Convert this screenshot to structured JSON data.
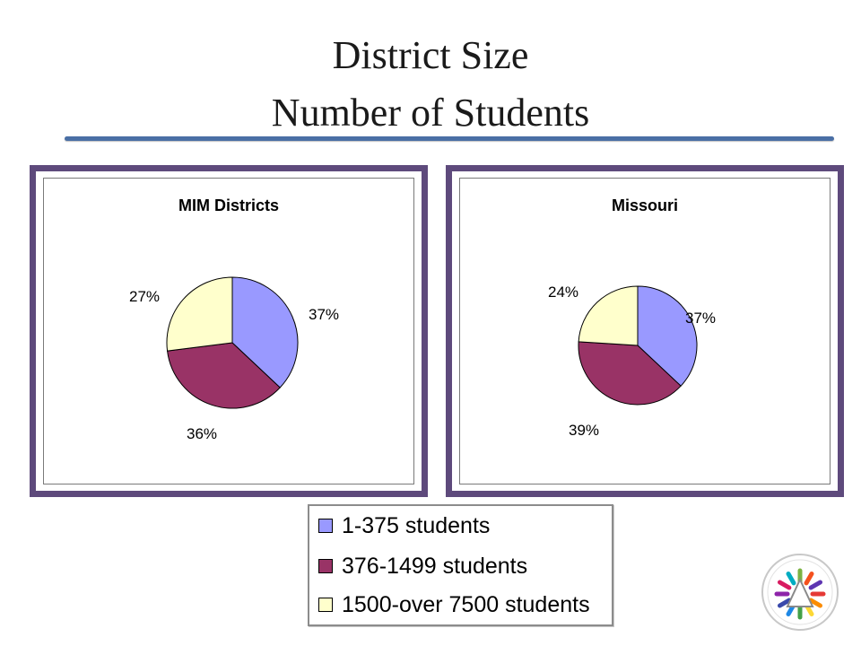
{
  "slide": {
    "title_line1": "District Size",
    "title_line2": "Number of Students"
  },
  "colors": {
    "frame": "#5e4a7c",
    "rule": "#4a6fa5",
    "slice_1": "#9999ff",
    "slice_2": "#993366",
    "slice_3": "#ffffcc"
  },
  "legend": {
    "items": [
      {
        "label": "1-375 students",
        "color": "#9999ff"
      },
      {
        "label": "376-1499 students",
        "color": "#993366"
      },
      {
        "label": "1500-over 7500 students",
        "color": "#ffffcc"
      }
    ]
  },
  "logo": {
    "icon": "district-logo-icon"
  },
  "chart_data": [
    {
      "type": "pie",
      "title": "MIM Districts",
      "categories": [
        "1-375 students",
        "376-1499 students",
        "1500-over 7500 students"
      ],
      "values": [
        37,
        36,
        27
      ],
      "labels": [
        "37%",
        "36%",
        "27%"
      ],
      "colors": [
        "#9999ff",
        "#993366",
        "#ffffcc"
      ],
      "start": "top",
      "direction": "clockwise"
    },
    {
      "type": "pie",
      "title": "Missouri",
      "categories": [
        "1-375 students",
        "376-1499 students",
        "1500-over 7500 students"
      ],
      "values": [
        37,
        39,
        24
      ],
      "labels": [
        "37%",
        "39%",
        "24%"
      ],
      "colors": [
        "#9999ff",
        "#993366",
        "#ffffcc"
      ],
      "start": "top",
      "direction": "clockwise"
    }
  ]
}
